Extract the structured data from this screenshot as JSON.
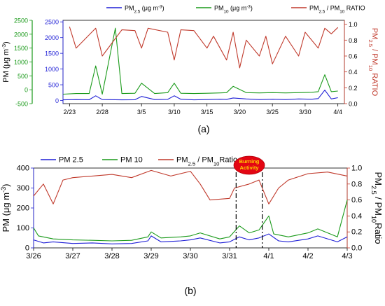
{
  "chart_data": [
    {
      "type": "line",
      "panel_label": "(a)",
      "legend": [
        {
          "parts": [
            [
              "PM",
              ""
            ],
            [
              "2.5",
              "sub"
            ],
            [
              " (μg m",
              ""
            ],
            [
              "-3",
              "sup"
            ],
            [
              ")",
              ""
            ]
          ],
          "color": "#1f1fd6"
        },
        {
          "parts": [
            [
              "PM",
              ""
            ],
            [
              "10",
              "sub"
            ],
            [
              " (μg m",
              ""
            ],
            [
              "-3",
              "sup"
            ],
            [
              ")",
              ""
            ]
          ],
          "color": "#1a9a1a"
        },
        {
          "parts": [
            [
              "PM",
              ""
            ],
            [
              "2.5",
              "sub"
            ],
            [
              " / PM",
              ""
            ],
            [
              "10",
              "sub"
            ],
            [
              " RATIO",
              ""
            ]
          ],
          "color": "#c0392b"
        }
      ],
      "legend_position": "top",
      "ylabel_left": {
        "parts": [
          [
            "PM (μg m",
            ""
          ],
          [
            "-3",
            "sup"
          ],
          [
            ")",
            ""
          ]
        ],
        "color": "#000000"
      },
      "ylabel_right": {
        "parts": [
          [
            "PM",
            ""
          ],
          [
            "2.5",
            "sub"
          ],
          [
            " / PM",
            ""
          ],
          [
            "10",
            "sub"
          ],
          [
            " RATIO",
            ""
          ]
        ],
        "color": "#c0392b"
      },
      "x_ticks": [
        "2/23",
        "2/28",
        "3/5",
        "3/10",
        "3/15",
        "3/20",
        "3/25",
        "3/30",
        "4/4"
      ],
      "xlim": [
        "2/22",
        "4/5"
      ],
      "y_blue_axis": {
        "ticks": [
          "0",
          "500",
          "1000",
          "1500",
          "2000",
          "2500"
        ],
        "ylim": [
          -100,
          2550
        ],
        "color": "#1f1fd6"
      },
      "y_green_axis": {
        "ticks": [
          "-500",
          "0",
          "500",
          "1000",
          "1500",
          "2000",
          "2500"
        ],
        "ylim": [
          -500,
          2500
        ],
        "color": "#1a9a1a"
      },
      "y_right_axis": {
        "ticks": [
          "0.0",
          "0.2",
          "0.4",
          "0.6",
          "0.8",
          "1.0"
        ],
        "ylim": [
          0.0,
          1.05
        ],
        "color": "#c0392b"
      },
      "series": [
        {
          "name": "PM2.5",
          "axis": "blue",
          "color": "#1f1fd6",
          "x": [
            "2/22",
            "2/24",
            "2/26",
            "2/27",
            "2/28",
            "3/2",
            "3/4",
            "3/5",
            "3/7",
            "3/9",
            "3/10",
            "3/11",
            "3/13",
            "3/15",
            "3/17",
            "3/18",
            "3/19",
            "3/21",
            "3/23",
            "3/25",
            "3/27",
            "3/29",
            "3/31",
            "4/1",
            "4/2",
            "4/3",
            "4/4"
          ],
          "y": [
            20,
            30,
            25,
            150,
            30,
            20,
            25,
            130,
            30,
            35,
            150,
            40,
            20,
            30,
            40,
            35,
            80,
            50,
            30,
            40,
            30,
            50,
            40,
            60,
            330,
            50,
            90
          ]
        },
        {
          "name": "PM10",
          "axis": "blue",
          "color": "#1a9a1a",
          "x": [
            "2/22",
            "2/24",
            "2/26",
            "2/27",
            "2/28",
            "3/1",
            "3/2",
            "3/4",
            "3/5",
            "3/7",
            "3/9",
            "3/10",
            "3/11",
            "3/13",
            "3/15",
            "3/17",
            "3/18",
            "3/19",
            "3/21",
            "3/23",
            "3/25",
            "3/27",
            "3/29",
            "3/31",
            "4/1",
            "4/2",
            "4/3",
            "4/4"
          ],
          "y": [
            200,
            220,
            220,
            1100,
            200,
            2300,
            220,
            230,
            550,
            220,
            250,
            550,
            230,
            220,
            230,
            240,
            250,
            450,
            250,
            240,
            250,
            240,
            250,
            260,
            280,
            820,
            280,
            300
          ]
        },
        {
          "name": "PM2.5 / PM10 RATIO",
          "axis": "right",
          "color": "#c0392b",
          "x": [
            "2/23",
            "2/24",
            "2/27",
            "2/28",
            "3/2",
            "3/4",
            "3/5",
            "3/6",
            "3/9",
            "3/10",
            "3/11",
            "3/13",
            "3/15",
            "3/16",
            "3/18",
            "3/19",
            "3/20",
            "3/21",
            "3/23",
            "3/24",
            "3/25",
            "3/27",
            "3/29",
            "3/30",
            "4/1",
            "4/2",
            "4/3",
            "4/4"
          ],
          "y": [
            0.97,
            0.7,
            0.95,
            0.6,
            0.93,
            0.92,
            0.7,
            0.95,
            0.9,
            0.55,
            0.93,
            0.92,
            0.7,
            0.85,
            0.55,
            0.9,
            0.45,
            0.8,
            0.6,
            0.85,
            0.5,
            0.85,
            0.6,
            0.9,
            0.7,
            0.95,
            0.88,
            0.96
          ]
        }
      ]
    },
    {
      "type": "line",
      "panel_label": "(b)",
      "legend": [
        {
          "parts": [
            [
              "PM 2.5",
              ""
            ]
          ],
          "color": "#1f1fd6"
        },
        {
          "parts": [
            [
              "PM 10",
              ""
            ]
          ],
          "color": "#1a9a1a"
        },
        {
          "parts": [
            [
              "PM",
              ""
            ],
            [
              "2.5",
              "sub"
            ],
            [
              " / PM",
              ""
            ],
            [
              "10",
              "sub"
            ],
            [
              "Ratio",
              ""
            ]
          ],
          "color": "#c0392b"
        }
      ],
      "legend_position": "top",
      "annotation": "Burning Activity",
      "annotation_color": "#e30613",
      "annotation_text_color": "#ffd400",
      "event_lines_x": [
        "3/31 04:00",
        "3/31 20:00"
      ],
      "ylabel_left": {
        "parts": [
          [
            "PM (μg m",
            ""
          ],
          [
            "-3",
            "sup"
          ],
          [
            ")",
            ""
          ]
        ],
        "color": "#000000"
      },
      "ylabel_right": {
        "parts": [
          [
            "PM",
            ""
          ],
          [
            "2.5",
            "sub"
          ],
          [
            " / PM",
            ""
          ],
          [
            "10",
            "sub"
          ],
          [
            "Ratio",
            ""
          ]
        ],
        "color": "#000000"
      },
      "x_ticks": [
        "3/26",
        "3/27",
        "3/28",
        "3/29",
        "3/30",
        "3/31",
        "4/1",
        "4/2",
        "4/3"
      ],
      "xlim": [
        "3/26",
        "4/3"
      ],
      "y_left_axis": {
        "ticks": [
          "0",
          "100",
          "200",
          "300",
          "400"
        ],
        "ylim": [
          0,
          400
        ],
        "color": "#1f1fd6"
      },
      "y_right_axis": {
        "ticks": [
          "0.0",
          "0.2",
          "0.4",
          "0.6",
          "0.8",
          "1.0"
        ],
        "ylim": [
          0.0,
          1.0
        ],
        "color": "#c0392b"
      },
      "series": [
        {
          "name": "PM 2.5",
          "axis": "left",
          "color": "#1f1fd6",
          "x": [
            "3/26",
            "3/26 06:00",
            "3/26 12:00",
            "3/27",
            "3/27 12:00",
            "3/28",
            "3/28 12:00",
            "3/28 22:00",
            "3/29",
            "3/29 06:00",
            "3/29 18:00",
            "3/30",
            "3/30 06:00",
            "3/30 18:00",
            "3/31",
            "3/31 06:00",
            "3/31 12:00",
            "3/31 18:00",
            "4/1",
            "4/1 06:00",
            "4/1 12:00",
            "4/2",
            "4/2 06:00",
            "4/2 18:00",
            "4/3"
          ],
          "y": [
            40,
            25,
            30,
            22,
            25,
            20,
            22,
            35,
            60,
            30,
            35,
            40,
            50,
            25,
            30,
            55,
            40,
            50,
            70,
            35,
            30,
            45,
            60,
            30,
            55
          ]
        },
        {
          "name": "PM 10",
          "axis": "left",
          "color": "#1a9a1a",
          "x": [
            "3/26",
            "3/26 03:00",
            "3/26 12:00",
            "3/27",
            "3/27 12:00",
            "3/28",
            "3/28 12:00",
            "3/28 22:00",
            "3/29",
            "3/29 06:00",
            "3/29 18:00",
            "3/30",
            "3/30 06:00",
            "3/30 18:00",
            "3/31",
            "3/31 06:00",
            "3/31 12:00",
            "3/31 18:00",
            "4/1",
            "4/1 03:00",
            "4/1 12:00",
            "4/2",
            "4/2 06:00",
            "4/2 18:00",
            "4/3"
          ],
          "y": [
            100,
            60,
            45,
            40,
            38,
            35,
            38,
            55,
            80,
            50,
            55,
            60,
            75,
            45,
            55,
            110,
            75,
            90,
            160,
            70,
            55,
            75,
            95,
            55,
            240
          ]
        },
        {
          "name": "PM2.5 / PM10 Ratio",
          "axis": "right",
          "color": "#c0392b",
          "x": [
            "3/26",
            "3/26 06:00",
            "3/26 12:00",
            "3/26 18:00",
            "3/27",
            "3/27 12:00",
            "3/28",
            "3/28 12:00",
            "3/29",
            "3/29 12:00",
            "3/30",
            "3/30 06:00",
            "3/30 12:00",
            "3/31",
            "3/31 03:00",
            "3/31 12:00",
            "3/31 18:00",
            "4/1",
            "4/1 06:00",
            "4/1 12:00",
            "4/2",
            "4/2 12:00",
            "4/3"
          ],
          "y": [
            0.65,
            0.8,
            0.55,
            0.85,
            0.88,
            0.9,
            0.92,
            0.88,
            0.97,
            0.9,
            0.96,
            0.8,
            0.6,
            0.62,
            0.75,
            0.8,
            0.85,
            0.55,
            0.75,
            0.85,
            0.93,
            0.95,
            0.9
          ]
        }
      ]
    }
  ]
}
